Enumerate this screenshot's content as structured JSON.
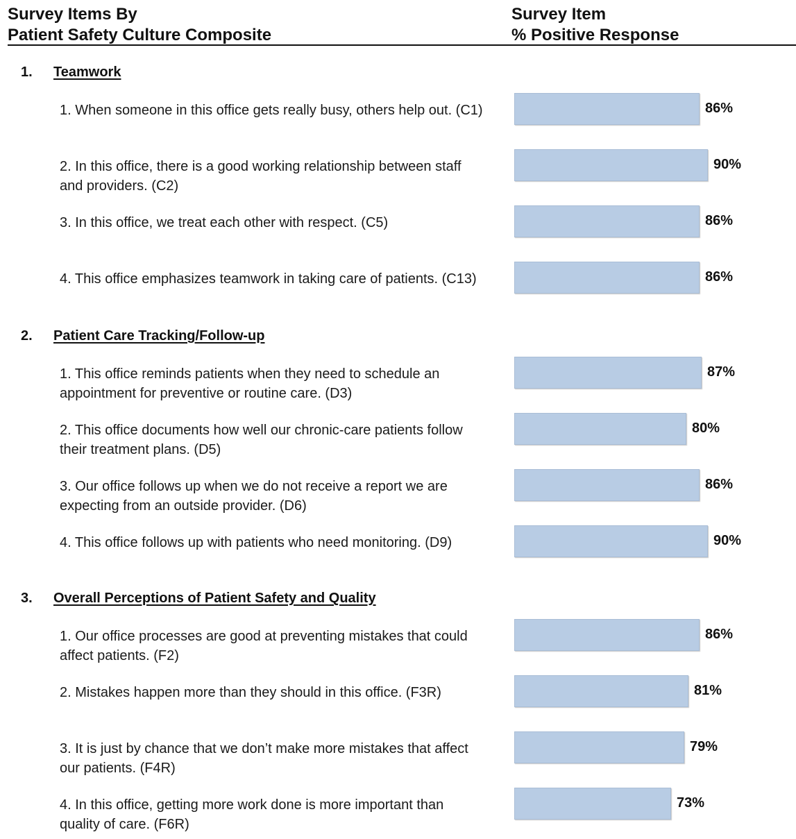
{
  "header": {
    "left_line1": "Survey Items By",
    "left_line2": "Patient Safety Culture Composite",
    "right_line1": "Survey Item",
    "right_line2": "% Positive Response"
  },
  "colors": {
    "bar_fill": "#b8cce4",
    "text": "#111111"
  },
  "chart_data": {
    "type": "bar",
    "orientation": "horizontal",
    "value_unit": "%",
    "xlim": [
      0,
      100
    ],
    "grid": false,
    "groups": [
      {
        "number": "1.",
        "title": "Teamwork",
        "items": [
          {
            "label": "1. When someone in this office gets really busy, others help out. (C1)",
            "value": 86,
            "value_label": "86%"
          },
          {
            "label": "2. In this office, there is a good working relationship between staff and providers. (C2)",
            "value": 90,
            "value_label": "90%"
          },
          {
            "label": "3. In this office, we treat each other with respect. (C5)",
            "value": 86,
            "value_label": "86%"
          },
          {
            "label": "4. This office emphasizes teamwork in taking care of patients. (C13)",
            "value": 86,
            "value_label": "86%"
          }
        ]
      },
      {
        "number": "2.",
        "title": "Patient Care Tracking/Follow-up",
        "items": [
          {
            "label": "1. This office reminds patients when they need to schedule an appointment for preventive or routine care. (D3)",
            "value": 87,
            "value_label": "87%"
          },
          {
            "label": "2. This office documents how well our chronic-care patients follow their treatment plans. (D5)",
            "value": 80,
            "value_label": "80%"
          },
          {
            "label": "3. Our office follows up when we do not receive a report we are expecting from an outside provider. (D6)",
            "value": 86,
            "value_label": "86%"
          },
          {
            "label": "4. This office follows up with patients who need monitoring. (D9)",
            "value": 90,
            "value_label": "90%"
          }
        ]
      },
      {
        "number": "3.",
        "title": "Overall Perceptions of Patient Safety and Quality",
        "items": [
          {
            "label": "1. Our office processes are good at preventing mistakes that could affect patients. (F2)",
            "value": 86,
            "value_label": "86%"
          },
          {
            "label": "2. Mistakes happen more than they should in this office. (F3R)",
            "value": 81,
            "value_label": "81%"
          },
          {
            "label": "3. It is just by chance that we don’t make more mistakes that affect our patients. (F4R)",
            "value": 79,
            "value_label": "79%"
          },
          {
            "label": "4. In this office, getting more work done is more important than quality of care. (F6R)",
            "value": 73,
            "value_label": "73%"
          }
        ]
      }
    ]
  }
}
